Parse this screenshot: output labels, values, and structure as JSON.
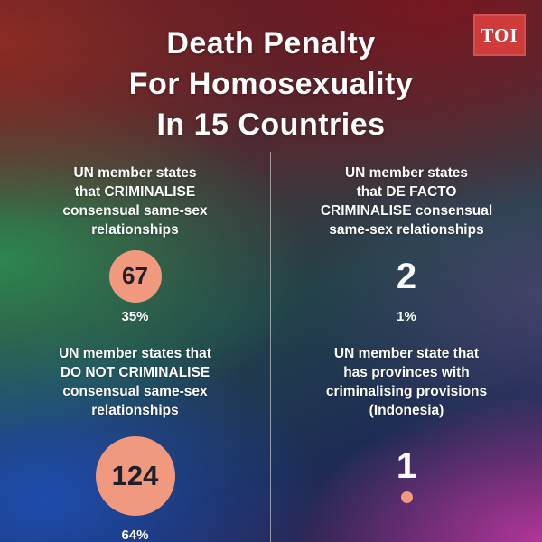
{
  "brand": {
    "logo_text": "TOI",
    "logo_color": "#cf3a3a"
  },
  "title": {
    "text": "Death Penalty\nFor Homosexuality\nIn 15 Countries"
  },
  "accent_color": "#f0997e",
  "quadrants": [
    {
      "label": "UN member states\nthat CRIMINALISE\nconsensual same-sex\nrelationships",
      "value": "67",
      "percent": "35%",
      "display": "circle"
    },
    {
      "label": "UN member states\nthat DE FACTO\nCRIMINALISE consensual\nsame-sex relationships",
      "value": "2",
      "percent": "1%",
      "display": "plain"
    },
    {
      "label": "UN member states that\nDO NOT CRIMINALISE\nconsensual same-sex\nrelationships",
      "value": "124",
      "percent": "64%",
      "display": "circle"
    },
    {
      "label": "UN member state that\nhas provinces with\ncriminalising provisions\n(Indonesia)",
      "value": "1",
      "percent": null,
      "display": "plain-dot"
    }
  ],
  "chart_data": {
    "type": "table",
    "title": "Death Penalty For Homosexuality In 15 Countries",
    "categories": [
      "UN member states that CRIMINALISE consensual same-sex relationships",
      "UN member states that DE FACTO CRIMINALISE consensual same-sex relationships",
      "UN member states that DO NOT CRIMINALISE consensual same-sex relationships",
      "UN member state that has provinces with criminalising provisions (Indonesia)"
    ],
    "values": [
      67,
      2,
      124,
      1
    ],
    "percent_labels": [
      "35%",
      "1%",
      "64%",
      null
    ],
    "legend_position": "none",
    "grid": false
  }
}
